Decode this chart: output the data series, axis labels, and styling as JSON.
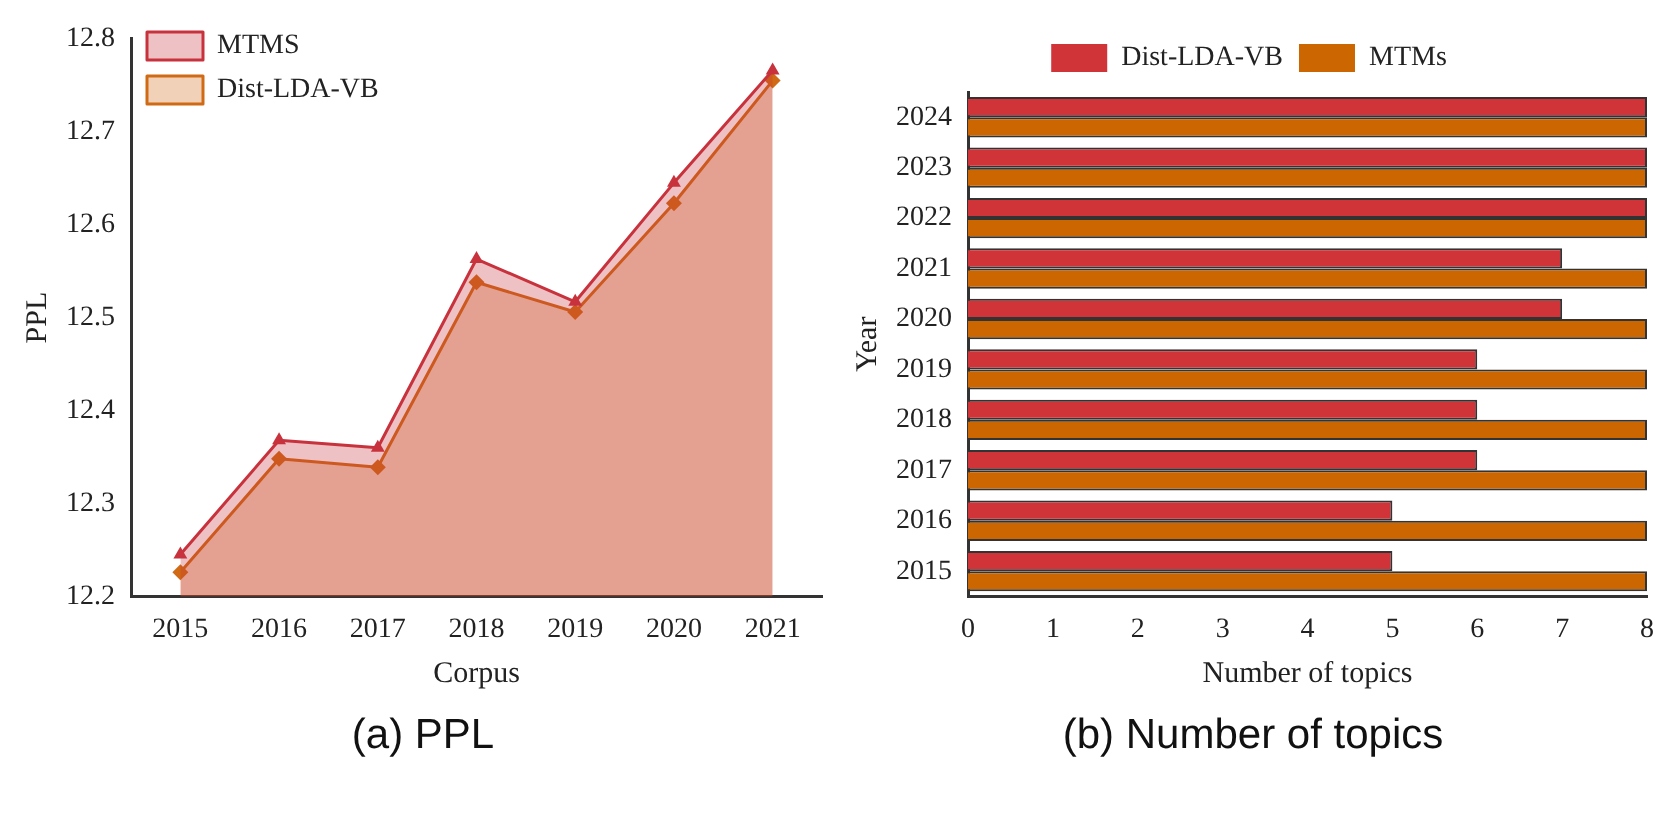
{
  "chart_data": [
    {
      "type": "area",
      "title": "(a) PPL",
      "xlabel": "Corpus",
      "ylabel": "PPL",
      "categories": [
        "2015",
        "2016",
        "2017",
        "2018",
        "2019",
        "2020",
        "2021"
      ],
      "series": [
        {
          "name": "MTMS",
          "color": "#c8323c",
          "marker": "triangle",
          "values": [
            12.245,
            12.368,
            12.36,
            12.563,
            12.517,
            12.645,
            12.766
          ]
        },
        {
          "name": "Dist-LDA-VB",
          "color": "#d06a14",
          "marker": "diamond",
          "values": [
            12.226,
            12.348,
            12.339,
            12.538,
            12.506,
            12.623,
            12.755
          ]
        }
      ],
      "ylim": [
        12.2,
        12.8
      ],
      "yticks": [
        12.2,
        12.3,
        12.4,
        12.5,
        12.6,
        12.7,
        12.8
      ],
      "legend": "top left",
      "grid": false
    },
    {
      "type": "bar",
      "orientation": "horizontal",
      "title": "(b) Number of topics",
      "xlabel": "Number of topics",
      "ylabel": "Year",
      "categories": [
        "2024",
        "2023",
        "2022",
        "2021",
        "2020",
        "2019",
        "2018",
        "2017",
        "2016",
        "2015"
      ],
      "series": [
        {
          "name": "Dist-LDA-VB",
          "color": "#d03338",
          "values": [
            8,
            8,
            8,
            7,
            7,
            6,
            6,
            6,
            5,
            5
          ]
        },
        {
          "name": "MTMs",
          "color": "#cc6600",
          "values": [
            8,
            8,
            8,
            8,
            8,
            8,
            8,
            8,
            8,
            8
          ]
        }
      ],
      "xlim": [
        0,
        8
      ],
      "xticks": [
        0,
        1,
        2,
        3,
        4,
        5,
        6,
        7,
        8
      ],
      "legend": "top",
      "grid": false
    }
  ]
}
